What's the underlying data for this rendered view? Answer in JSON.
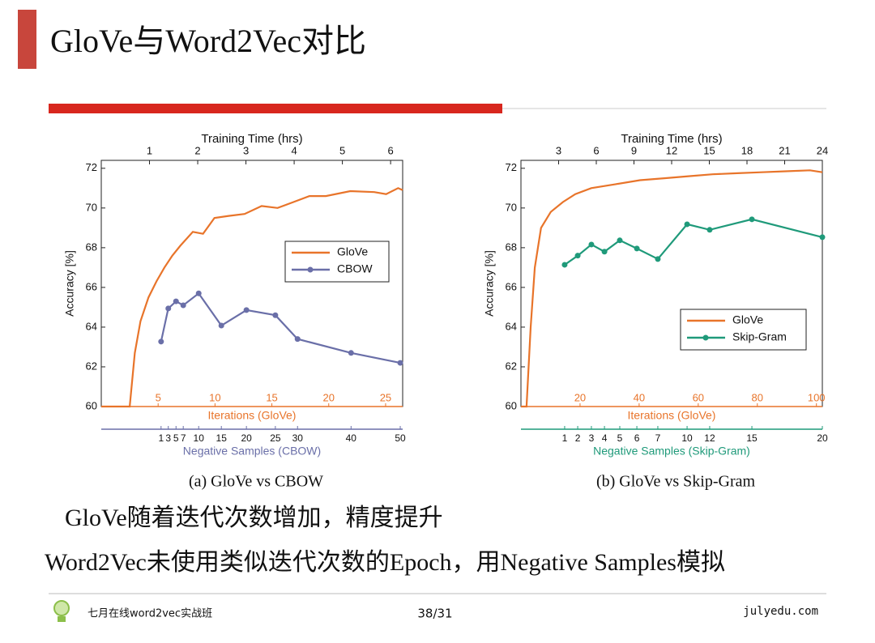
{
  "header": {
    "title": "GloVe与Word2Vec对比"
  },
  "chart_data": [
    {
      "type": "line",
      "ylabel": "Accuracy [%]",
      "xlabel": "Iterations (GloVe)",
      "x2label": "Training Time (hrs)",
      "x3label": "Negative Samples (CBOW)",
      "caption": "(a) GloVe vs CBOW",
      "xlim": [
        0,
        26.5
      ],
      "xticks": [
        5,
        10,
        15,
        20,
        25
      ],
      "x2lim": [
        0,
        6.25
      ],
      "x2ticks": [
        1,
        2,
        3,
        4,
        5,
        6
      ],
      "ylim": [
        60,
        72.4
      ],
      "yticks": [
        60,
        62,
        64,
        66,
        68,
        70,
        72
      ],
      "legend": "center right",
      "series": [
        {
          "name": "GloVe",
          "color": "#e8742a",
          "axis": "x",
          "x": [
            0,
            2.5,
            2.95,
            3.45,
            4.15,
            4.85,
            5.55,
            6.25,
            6.95,
            8.05,
            8.95,
            9.95,
            11.2,
            12.6,
            14.1,
            15.5,
            16.9,
            18.3,
            19.75,
            21.9,
            24.0,
            25.05,
            26.1,
            26.5
          ],
          "values": [
            60,
            60,
            62.7,
            64.3,
            65.5,
            66.3,
            67.0,
            67.6,
            68.1,
            68.8,
            68.7,
            69.5,
            69.6,
            69.7,
            70.1,
            70.0,
            70.3,
            70.6,
            70.6,
            70.85,
            70.8,
            70.7,
            71.0,
            70.9
          ]
        },
        {
          "name": "CBOW",
          "color": "#6a6fa8",
          "axis": "x2",
          "marker": "o",
          "x": [
            1.24,
            1.39,
            1.55,
            1.7,
            2.02,
            2.49,
            3.01,
            3.61,
            4.07,
            5.18,
            6.2
          ],
          "samples": [
            1,
            3,
            5,
            7,
            10,
            15,
            20,
            25,
            30,
            40,
            50
          ],
          "values": [
            63.27,
            64.94,
            65.3,
            65.1,
            65.7,
            64.08,
            64.86,
            64.6,
            63.4,
            62.7,
            62.2
          ]
        }
      ]
    },
    {
      "type": "line",
      "ylabel": "Accuracy [%]",
      "xlabel": "Iterations (GloVe)",
      "x2label": "Training Time (hrs)",
      "x3label": "Negative Samples (Skip-Gram)",
      "caption": "(b) GloVe vs Skip-Gram",
      "xlim": [
        0,
        102
      ],
      "xticks": [
        20,
        40,
        60,
        80,
        100
      ],
      "x2lim": [
        0,
        24
      ],
      "x2ticks": [
        3,
        6,
        9,
        12,
        15,
        18,
        21,
        24
      ],
      "ylim": [
        60,
        72.4
      ],
      "yticks": [
        60,
        62,
        64,
        66,
        68,
        70,
        72
      ],
      "legend": "lower right",
      "series": [
        {
          "name": "GloVe",
          "color": "#e8742a",
          "axis": "x",
          "x": [
            0,
            1.9,
            3.3,
            4.7,
            6.8,
            10.1,
            14.2,
            18.4,
            23.8,
            32.1,
            40.3,
            48.5,
            56.7,
            64.9,
            73.2,
            81.4,
            89.6,
            97.8,
            102
          ],
          "values": [
            60,
            60,
            64,
            67,
            69,
            69.8,
            70.3,
            70.7,
            71.0,
            71.2,
            71.4,
            71.5,
            71.6,
            71.7,
            71.75,
            71.8,
            71.85,
            71.9,
            71.8
          ]
        },
        {
          "name": "Skip-Gram",
          "color": "#1f9a7a",
          "axis": "x2",
          "marker": "o",
          "x": [
            3.48,
            4.52,
            5.61,
            6.65,
            7.87,
            9.23,
            10.9,
            13.23,
            15.03,
            18.39,
            24.0
          ],
          "samples": [
            1,
            2,
            3,
            4,
            5,
            6,
            7,
            10,
            12,
            15,
            20
          ],
          "values": [
            67.14,
            67.6,
            68.16,
            67.8,
            68.37,
            67.96,
            67.43,
            69.18,
            68.9,
            69.43,
            68.53
          ]
        }
      ]
    }
  ],
  "body": {
    "lines": [
      "GloVe随着迭代次数增加，精度提升",
      "Word2Vec未使用类似迭代次数的Epoch，用Negative Samples模拟"
    ]
  },
  "footer": {
    "course": "七月在线word2vec实战班",
    "page": "38/31",
    "site": "julyedu.com"
  }
}
